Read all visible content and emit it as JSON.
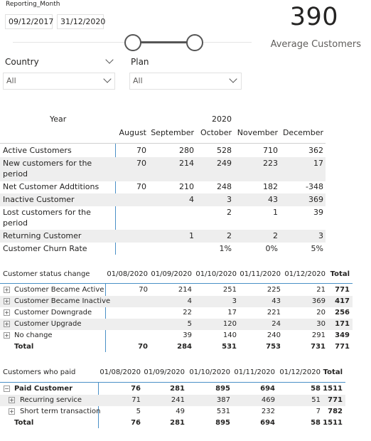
{
  "slicer": {
    "title": "Reporting_Month",
    "start_date": "09/12/2017",
    "end_date": "31/12/2020"
  },
  "card": {
    "value": "390",
    "label": "Average Customers"
  },
  "country": {
    "title": "Country",
    "value": "All"
  },
  "plan": {
    "title": "Plan",
    "value": "All"
  },
  "matrix1": {
    "year_header": "Year",
    "year_value": "2020",
    "columns": [
      "August",
      "September",
      "October",
      "November",
      "December"
    ],
    "rows": [
      {
        "label": "Active Customers",
        "values": [
          "70",
          "280",
          "528",
          "710",
          "362"
        ]
      },
      {
        "label1": "New customers for the",
        "label2": "period",
        "values": [
          "70",
          "214",
          "249",
          "223",
          "17"
        ]
      },
      {
        "label": "Net Customer Addtitions",
        "values": [
          "70",
          "210",
          "248",
          "182",
          "-348"
        ]
      },
      {
        "label": "Inactive Customer",
        "values": [
          "",
          "4",
          "3",
          "43",
          "369"
        ]
      },
      {
        "label1": "Lost customers for the",
        "label2": "period",
        "values": [
          "",
          "",
          "2",
          "1",
          "39"
        ]
      },
      {
        "label": "Returning Customer",
        "values": [
          "",
          "1",
          "2",
          "2",
          "3"
        ]
      },
      {
        "label": "Customer Churn Rate",
        "values": [
          "",
          "",
          "1%",
          "0%",
          "5%"
        ]
      }
    ]
  },
  "matrix2": {
    "header": "Customer status change",
    "columns": [
      "01/08/2020",
      "01/09/2020",
      "01/10/2020",
      "01/11/2020",
      "01/12/2020",
      "Total"
    ],
    "expand_symbol": "+",
    "rows": [
      {
        "label": "Customer Became Active",
        "values": [
          "70",
          "214",
          "251",
          "225",
          "21",
          "771"
        ]
      },
      {
        "label": "Customer Became Inactive",
        "values": [
          "",
          "4",
          "3",
          "43",
          "369",
          "417"
        ]
      },
      {
        "label": "Customer Downgrade",
        "values": [
          "",
          "22",
          "17",
          "221",
          "20",
          "256"
        ]
      },
      {
        "label": "Customer Upgrade",
        "values": [
          "",
          "5",
          "120",
          "24",
          "30",
          "171"
        ]
      },
      {
        "label": "No change",
        "values": [
          "",
          "39",
          "140",
          "240",
          "291",
          "349"
        ]
      }
    ],
    "total": {
      "label": "Total",
      "values": [
        "70",
        "284",
        "531",
        "753",
        "731",
        "771"
      ]
    }
  },
  "matrix3": {
    "header": "Customers who paid",
    "columns": [
      "01/08/2020",
      "01/09/2020",
      "01/10/2020",
      "01/11/2020",
      "01/12/2020",
      "Total"
    ],
    "collapse_symbol": "−",
    "expand_symbol": "+",
    "parent": {
      "label": "Paid Customer",
      "values": [
        "76",
        "281",
        "895",
        "694",
        "58",
        "1511"
      ]
    },
    "rows": [
      {
        "label": "Recurring service",
        "values": [
          "71",
          "241",
          "387",
          "469",
          "51",
          "771"
        ]
      },
      {
        "label": "Short term transaction",
        "values": [
          "5",
          "49",
          "531",
          "232",
          "7",
          "782"
        ]
      }
    ],
    "total": {
      "label": "Total",
      "values": [
        "76",
        "281",
        "895",
        "694",
        "58",
        "1511"
      ]
    }
  }
}
